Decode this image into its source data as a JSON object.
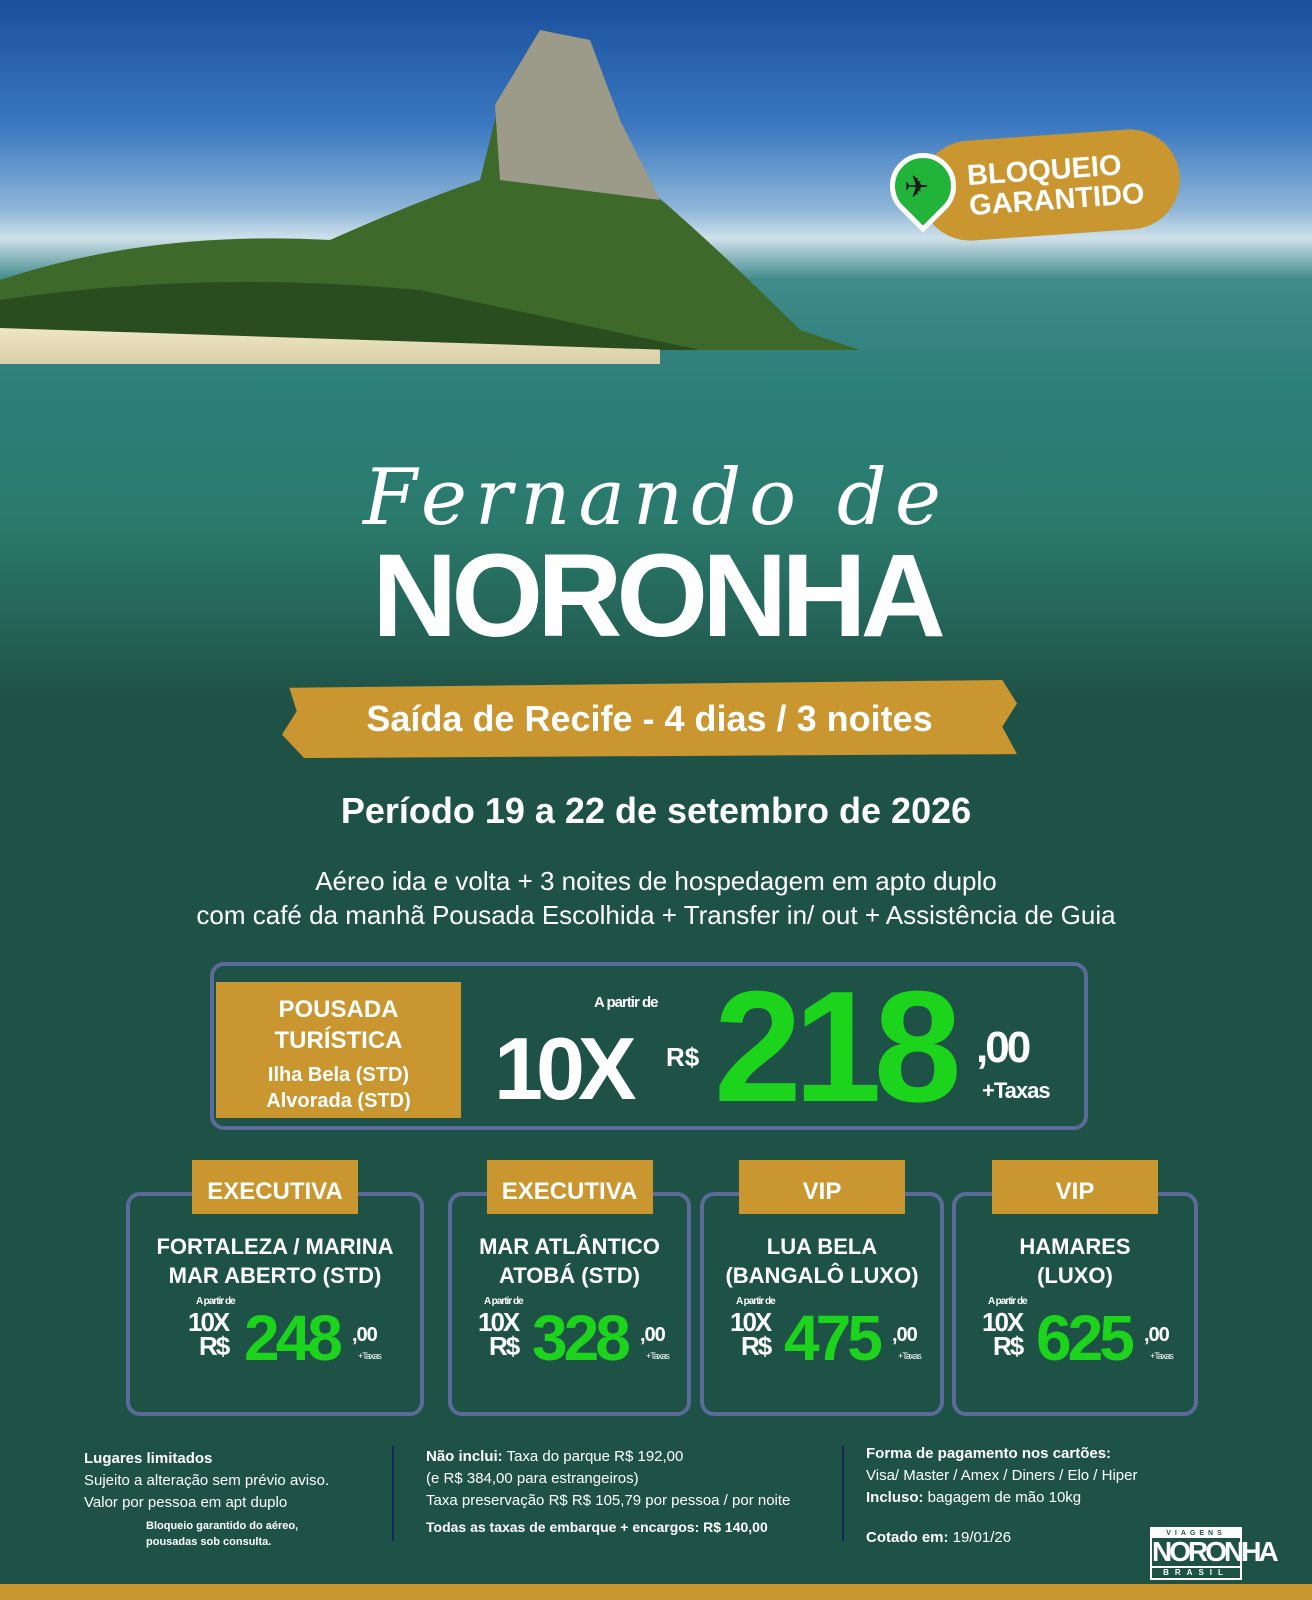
{
  "badge": {
    "line1": "BLOQUEIO",
    "line2": "GARANTIDO",
    "icon": "airplane-location-pin-icon"
  },
  "hero": {
    "script_title": "Fernando de",
    "title": "NORONHA"
  },
  "ribbon": "Saída de Recife -  4 dias / 3 noites",
  "period": "Período 19 a 22 de setembro de 2026",
  "description": [
    "Aéreo ida e volta + 3 noites de hospedagem em apto duplo",
    "com café da manhã Pousada Escolhida + Transfer in/ out + Assistência de Guia"
  ],
  "main_offer": {
    "category_line1": "POUSADA",
    "category_line2": "TURÍSTICA",
    "hotel1": "Ilha Bela (STD)",
    "hotel2": "Alvorada (STD)",
    "from": "A partir de",
    "installments": "10X",
    "currency": "R$",
    "value": "218",
    "cents": ",00",
    "taxes": "+Taxas"
  },
  "cards": [
    {
      "tag": "EXECUTIVA",
      "name1": "FORTALEZA / MARINA",
      "name2": "MAR ABERTO (STD)",
      "from": "A partir de",
      "installments": "10X",
      "currency": "R$",
      "value": "248",
      "cents": ",00",
      "taxes": "+Taxas"
    },
    {
      "tag": "EXECUTIVA",
      "name1": "MAR ATLÂNTICO",
      "name2": "ATOBÁ (STD)",
      "from": "A partir de",
      "installments": "10X",
      "currency": "R$",
      "value": "328",
      "cents": ",00",
      "taxes": "+Taxas"
    },
    {
      "tag": "VIP",
      "name1": "LUA BELA",
      "name2": "(BANGALÔ LUXO)",
      "from": "A partir de",
      "installments": "10X",
      "currency": "R$",
      "value": "475",
      "cents": ",00",
      "taxes": "+Taxas"
    },
    {
      "tag": "VIP",
      "name1": "HAMARES",
      "name2": "(LUXO)",
      "from": "A partir de",
      "installments": "10X",
      "currency": "R$",
      "value": "625",
      "cents": ",00",
      "taxes": "+Taxas"
    }
  ],
  "footer": {
    "col1": {
      "title": "Lugares limitados",
      "line1": "Sujeito a alteração sem prévio aviso.",
      "line2": "Valor por pessoa em apt duplo",
      "note1": "Bloqueio garantido do aéreo,",
      "note2": "pousadas sob consulta."
    },
    "col2": {
      "label": "Não inclui:",
      "line1": " Taxa do parque R$ 192,00",
      "line2": "(e R$ 384,00 para estrangeiros)",
      "line3": "Taxa preservação R$ R$ 105,79 por pessoa / por noite",
      "line4": "Todas as taxas de embarque + encargos: R$ 140,00"
    },
    "col3": {
      "title": "Forma de pagamento nos cartões:",
      "cards": "Visa/ Master / Amex / Diners / Elo / Hiper",
      "incl_label": "Incluso:",
      "incl": " bagagem de mão 10kg",
      "quoted_label": "Cotado em:",
      "quoted": " 19/01/26"
    }
  },
  "logo": {
    "top": "VIAGENS",
    "main": "NORONHA",
    "bottom": "BRASIL"
  },
  "colors": {
    "background": "#1f5246",
    "gold": "#c9962f",
    "price_green": "#1bd41b",
    "card_border": "#5a6b9a"
  }
}
